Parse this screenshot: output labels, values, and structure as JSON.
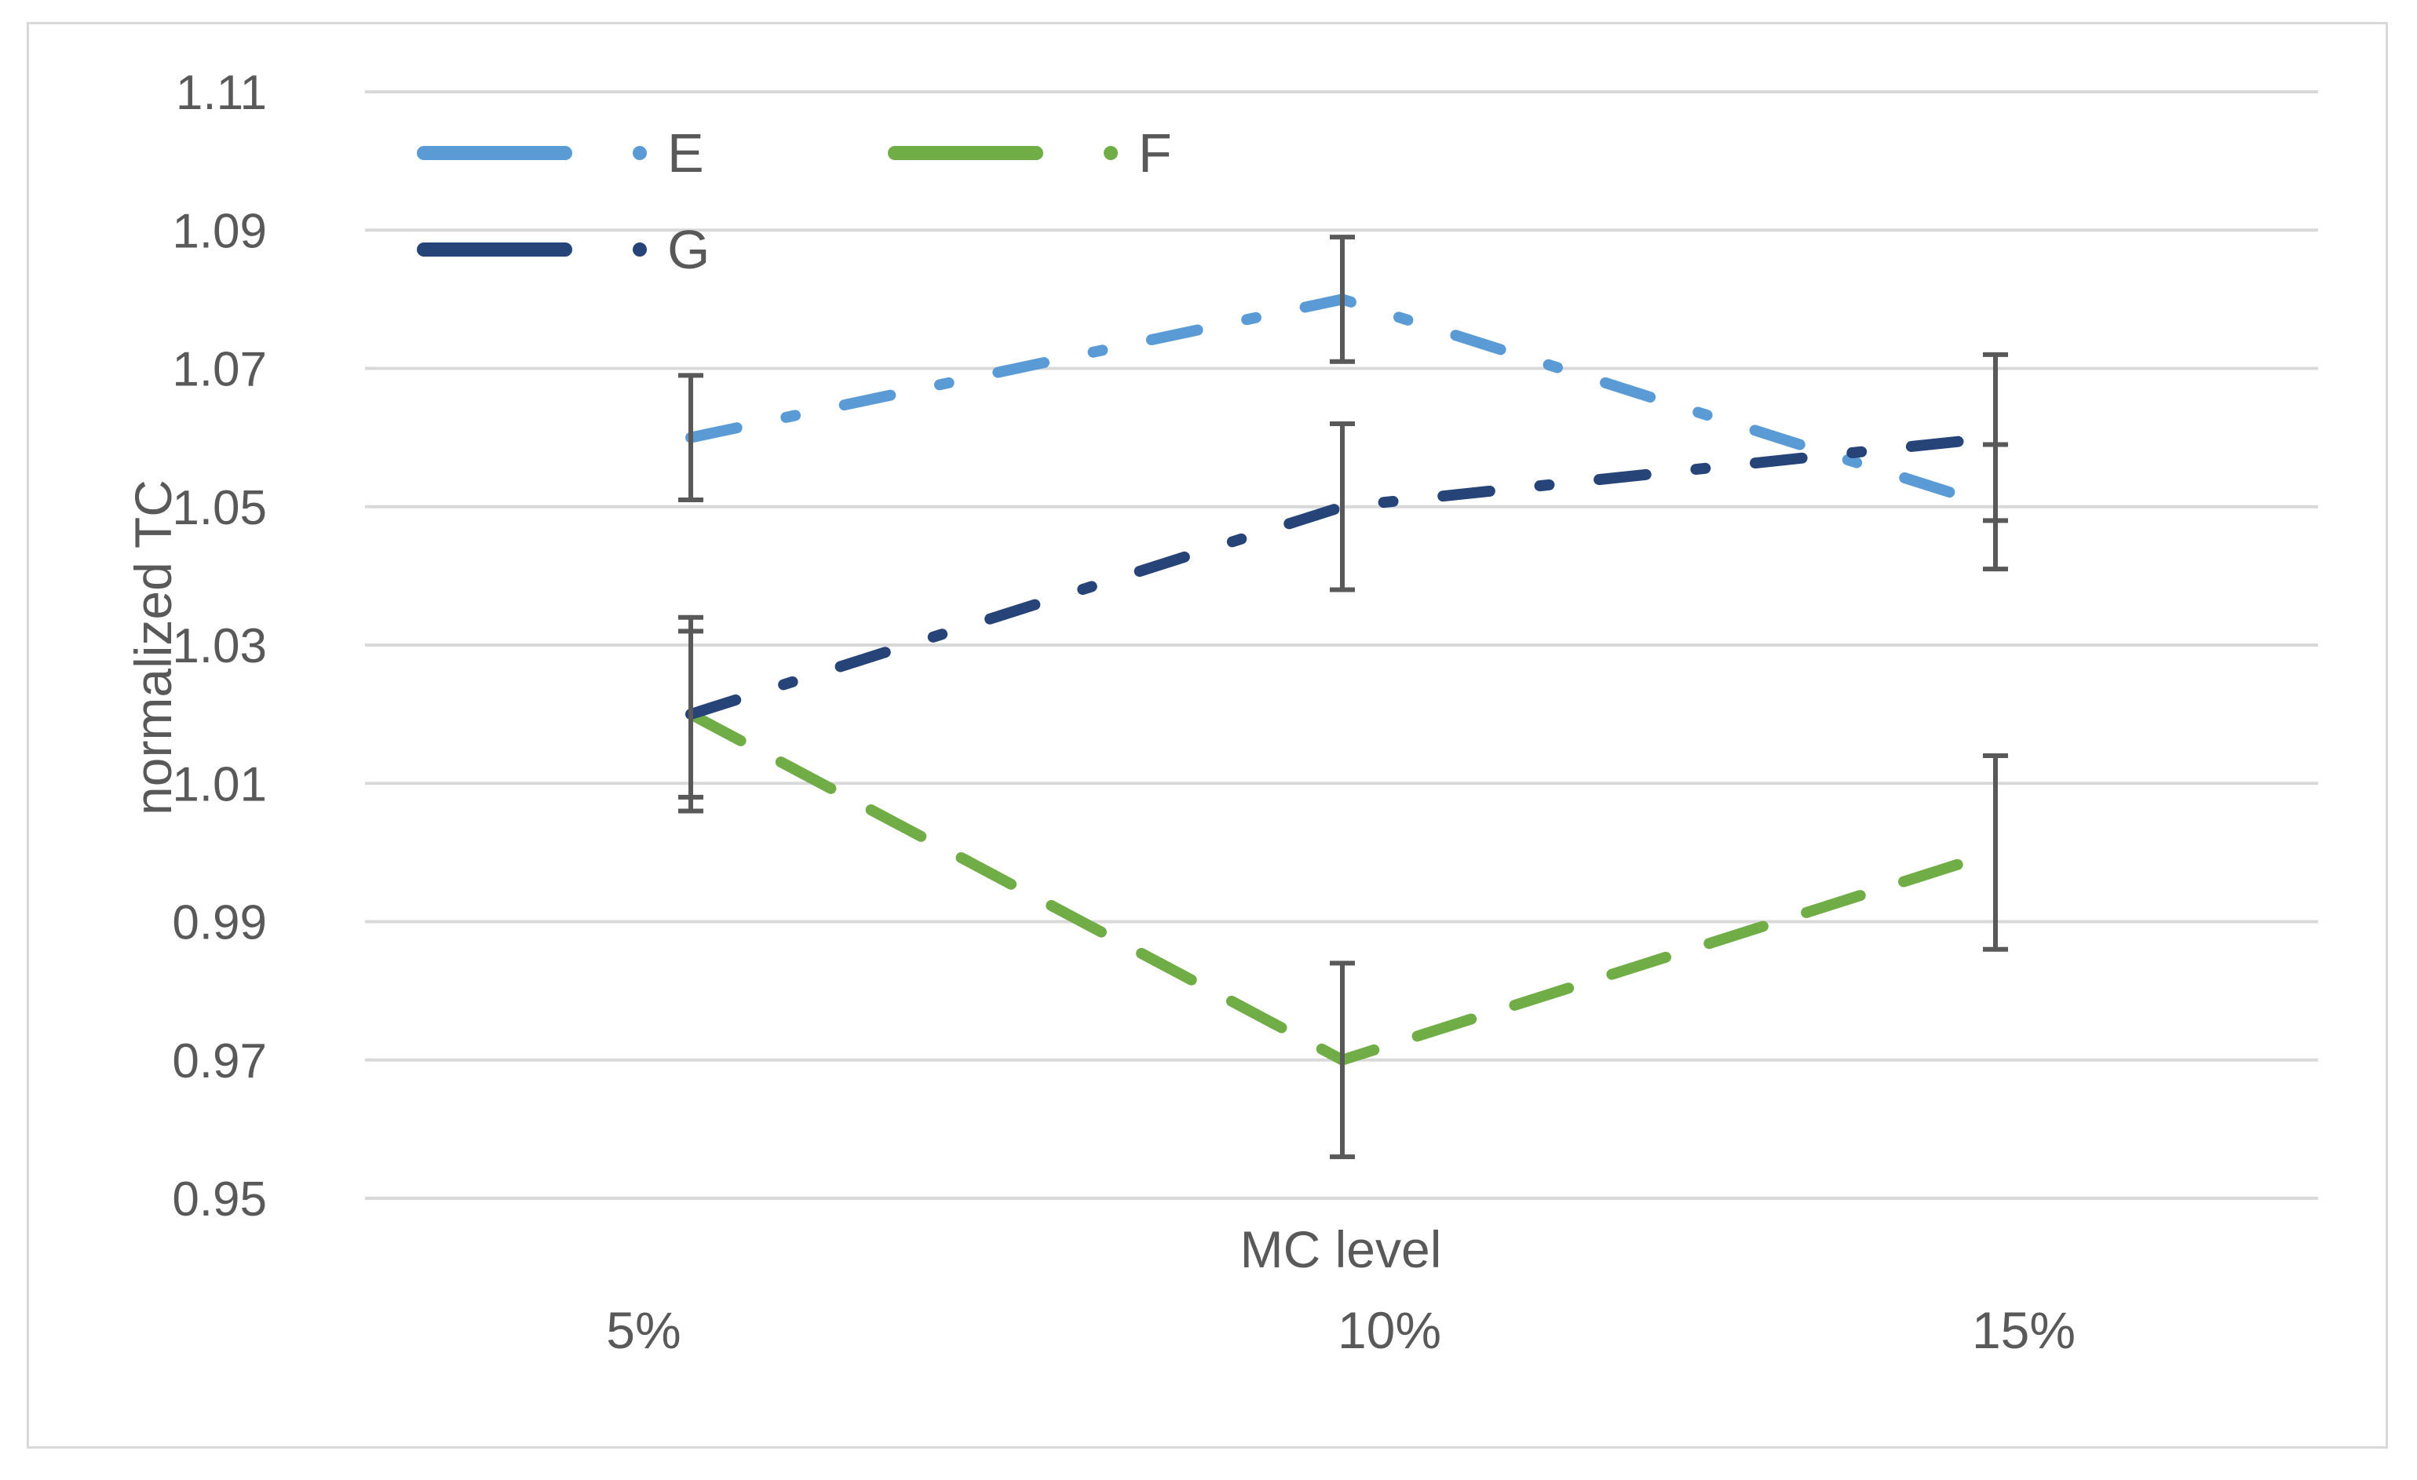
{
  "chart_data": {
    "type": "line",
    "title": "",
    "xlabel": "MC level",
    "ylabel": "normalized TC",
    "categories": [
      "5%",
      "10%",
      "15%"
    ],
    "ylim": [
      0.95,
      1.11
    ],
    "yticks": [
      "0.95",
      "0.97",
      "0.99",
      "1.01",
      "1.03",
      "1.05",
      "1.07",
      "1.09",
      "1.11"
    ],
    "grid": true,
    "legend_position": "top-left",
    "series": [
      {
        "name": "E",
        "values": [
          1.06,
          1.08,
          1.05
        ],
        "error": [
          0.009,
          0.009,
          0.009
        ],
        "color": "#5b9bd5",
        "dash": "dash-dot"
      },
      {
        "name": "F",
        "values": [
          1.02,
          0.97,
          1.0
        ],
        "error": [
          0.014,
          0.014,
          0.014
        ],
        "color": "#70ad47",
        "dash": "dash"
      },
      {
        "name": "G",
        "values": [
          1.02,
          1.05,
          1.06
        ],
        "error": [
          0.012,
          0.012,
          0.012
        ],
        "color": "#264478",
        "dash": "dash-dot"
      }
    ]
  }
}
